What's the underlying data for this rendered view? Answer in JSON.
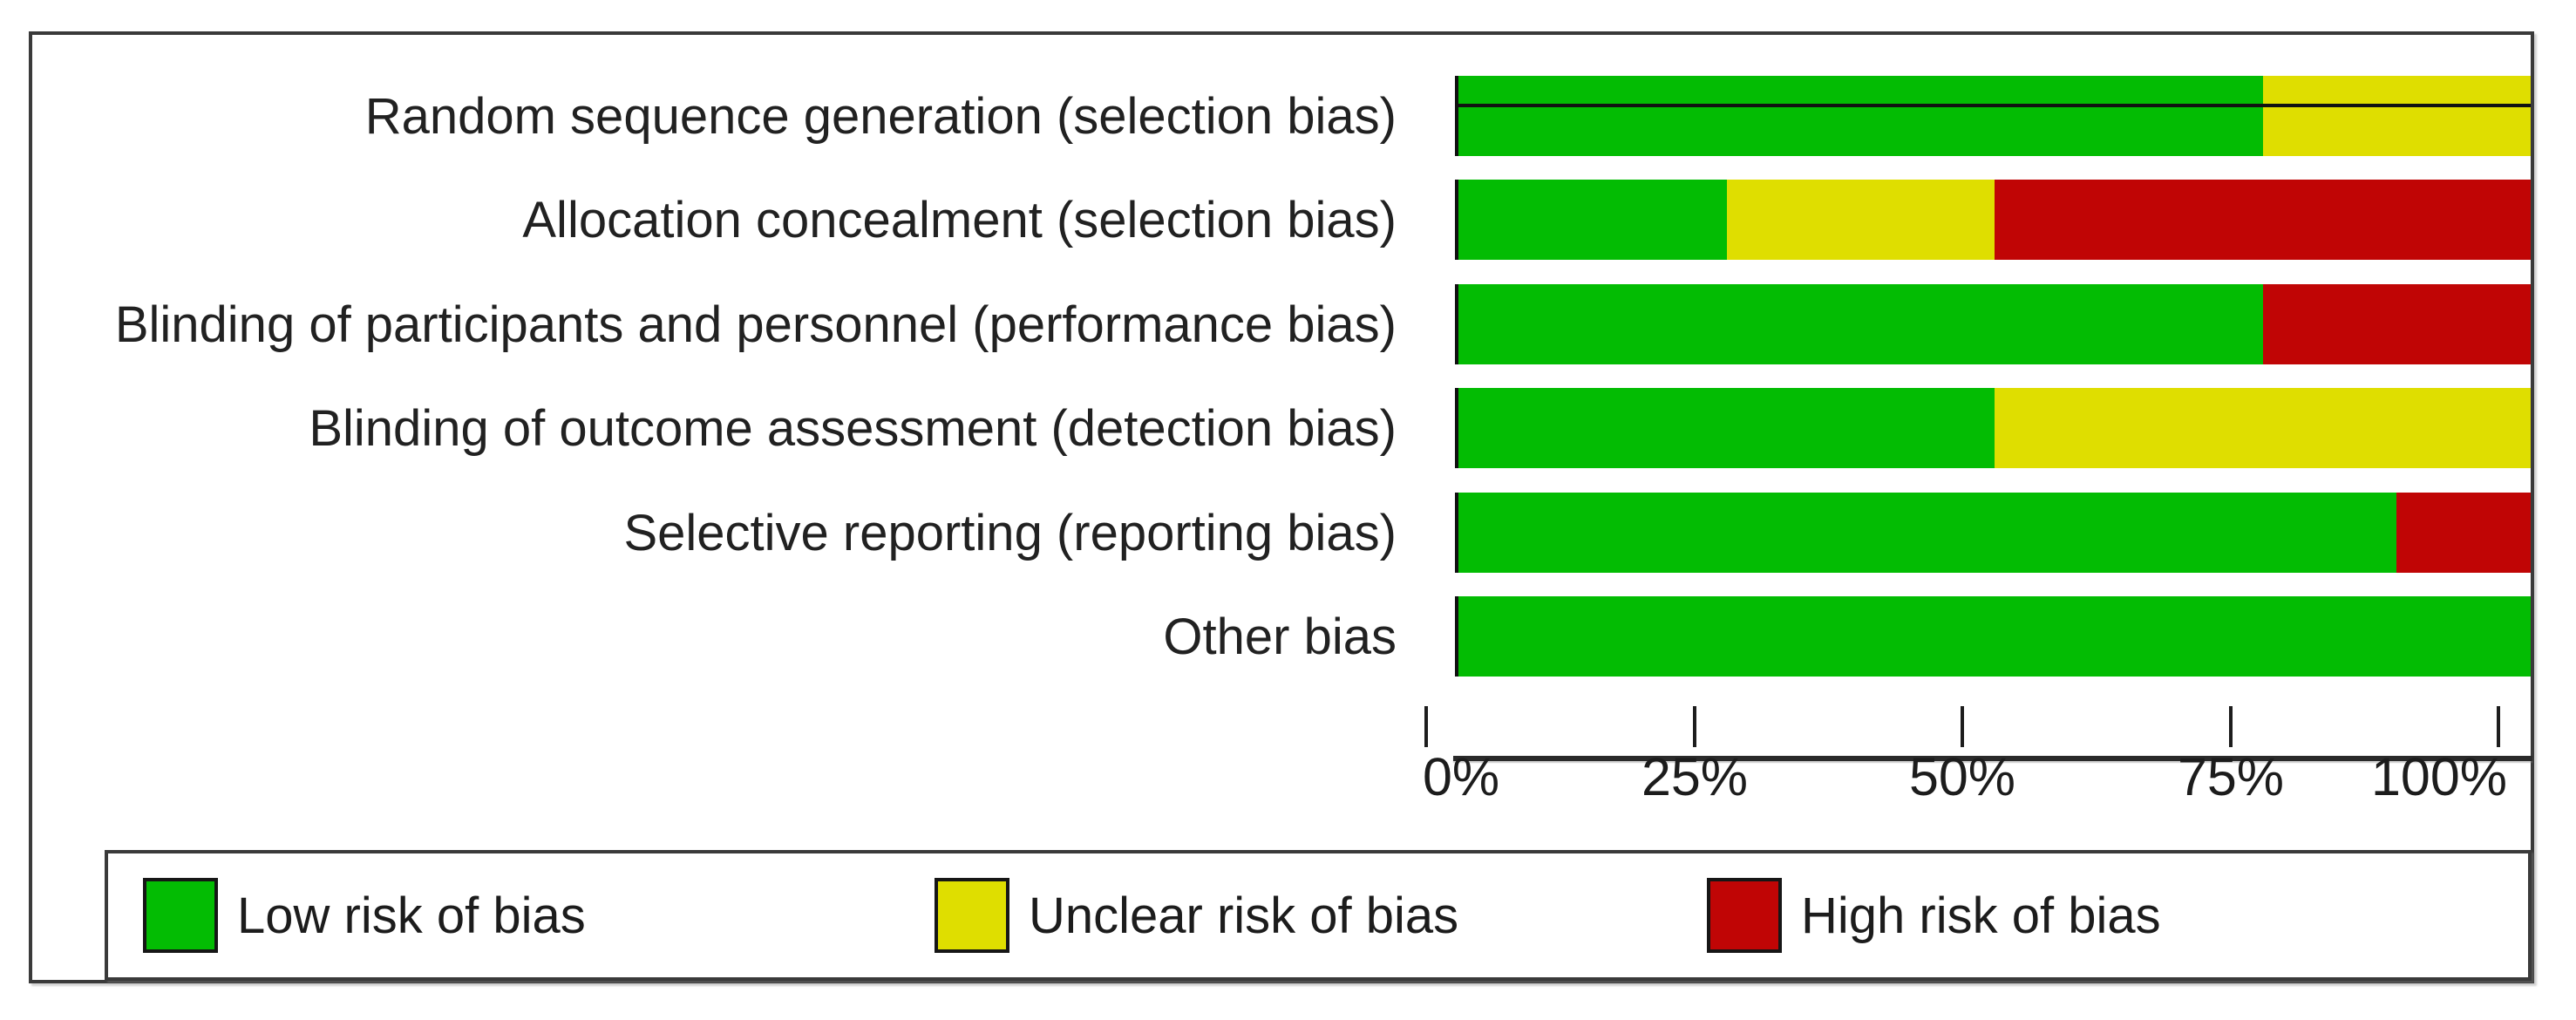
{
  "chart_data": {
    "type": "bar",
    "orientation": "horizontal",
    "stacked": true,
    "unit": "percent",
    "xlim": [
      0,
      100
    ],
    "grid": false,
    "legend_position": "bottom",
    "x_ticks": [
      {
        "value": 0,
        "label": "0%"
      },
      {
        "value": 25,
        "label": "25%"
      },
      {
        "value": 50,
        "label": "50%"
      },
      {
        "value": 75,
        "label": "75%"
      },
      {
        "value": 100,
        "label": "100%"
      }
    ],
    "categories": [
      "Random sequence generation (selection bias)",
      "Allocation concealment (selection bias)",
      "Blinding of participants and personnel (performance bias)",
      "Blinding of outcome assessment (detection bias)",
      "Selective reporting (reporting bias)",
      "Other bias"
    ],
    "series": [
      {
        "name": "Low risk of bias",
        "color": "#03BC03",
        "values": [
          75,
          25,
          75,
          50,
          87.5,
          100
        ]
      },
      {
        "name": "Unclear risk of bias",
        "color": "#DFDE00",
        "values": [
          25,
          25,
          0,
          50,
          0,
          0
        ]
      },
      {
        "name": "High risk of bias",
        "color": "#C00505",
        "values": [
          0,
          50,
          25,
          0,
          12.5,
          0
        ]
      }
    ]
  },
  "legend": {
    "items": [
      {
        "label": "Low risk of bias",
        "color": "#03BC03"
      },
      {
        "label": "Unclear risk of bias",
        "color": "#DFDE00"
      },
      {
        "label": "High risk of bias",
        "color": "#C00505"
      }
    ]
  },
  "colors": {
    "low_risk": "#03BC03",
    "unclear_risk": "#DFDE00",
    "high_risk": "#C00505",
    "frame_border": "#3A3A3A",
    "axis": "#1D1D1D",
    "text": "#212121"
  }
}
